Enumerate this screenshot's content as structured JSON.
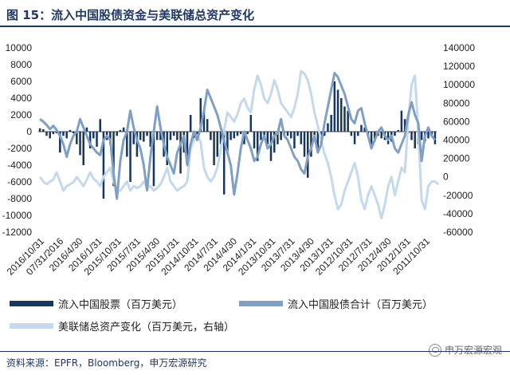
{
  "figure": {
    "title": "图 15：流入中国股债资金与美联储总资产变化",
    "source": "资料来源：EPFR，Bloomberg，申万宏源研究",
    "watermark": "申万宏源宏观"
  },
  "legend": {
    "equity": "流入中国股票（百万美元）",
    "bond": "流入中国股债合计（百万美元）",
    "fed": "美联储总资产变化（百万美元，右轴）"
  },
  "colors": {
    "equity": "#17375e",
    "bond": "#7f9fc4",
    "fed": "#c5d9ec",
    "title": "#1f3864"
  },
  "chart_data": {
    "type": "bar",
    "x_ticks": [
      "2016/10/31",
      "07/31/2016",
      "2016/4/30",
      "2016/1/31",
      "2015/10/31",
      "2015/7/31",
      "2015/4/30",
      "2015/1/31",
      "2014/10/31",
      "2014/7/31",
      "2014/4/30",
      "2014/1/31",
      "2013/10/31",
      "2013/7/31",
      "2013/4/30",
      "2013/1/31",
      "2012/10/31",
      "2012/7/31",
      "2012/4/30",
      "2012/1/31",
      "2011/10/31"
    ],
    "left_axis": {
      "ylim": [
        -12000,
        10000
      ],
      "ticks": [
        10000,
        8000,
        6000,
        4000,
        2000,
        0,
        -2000,
        -4000,
        -6000,
        -8000,
        -10000,
        -12000
      ]
    },
    "right_axis": {
      "ylim": [
        -60000,
        140000
      ],
      "ticks": [
        140000,
        120000,
        100000,
        80000,
        60000,
        40000,
        20000,
        0,
        -20000,
        -40000,
        -60000
      ]
    },
    "legend_position": "bottom",
    "series": [
      {
        "name": "流入中国股票（百万美元）",
        "type": "bar",
        "axis": "left",
        "values": [
          400,
          300,
          -500,
          -800,
          -300,
          -200,
          -2500,
          -500,
          -800,
          200,
          -200,
          -1500,
          -2800,
          -4000,
          500,
          -2000,
          -800,
          -1800,
          1500,
          -8000,
          -1000,
          -1500,
          -6500,
          -500,
          200,
          500,
          -3000,
          -6000,
          -1500,
          -3000,
          -1000,
          -1200,
          -500,
          -1800,
          -6500,
          -1000,
          -1000,
          -3000,
          -4000,
          -1000,
          -500,
          -1000,
          -5000,
          -2500,
          -3000,
          2000,
          -1000,
          -500,
          4000,
          2500,
          1500,
          -1000,
          -4000,
          -3000,
          -1500,
          -7500,
          -2500,
          -1000,
          -800,
          -500,
          -300,
          -1500,
          -300,
          2000,
          -2000,
          -3500,
          -1000,
          -500,
          -1500,
          -3500,
          -2500,
          -1500,
          -1000,
          -300,
          -500,
          -800,
          -2000,
          -500,
          -1500,
          -3000,
          -5500,
          -3000,
          -500,
          -2500,
          -1500,
          -500,
          1000,
          2000,
          6000,
          5000,
          4000,
          3000,
          2500,
          -500,
          -1500,
          -500,
          800,
          500,
          -500,
          -1500,
          -1200,
          -500,
          -800,
          -1000,
          -1500,
          -1200,
          -500,
          200,
          2500,
          1500,
          -200,
          -1000,
          -2000,
          -1500,
          -1000,
          -1200,
          -800,
          -500,
          -1500
        ]
      },
      {
        "name": "流入中国股债合计（百万美元）",
        "type": "line",
        "axis": "left",
        "values": [
          1500,
          1200,
          800,
          300,
          700,
          200,
          -500,
          -1500,
          -3000,
          -1500,
          -500,
          0,
          1500,
          500,
          -500,
          -1500,
          -2000,
          -2500,
          -2800,
          -1000,
          -500,
          -1000,
          -5000,
          -8000,
          -3500,
          -1000,
          0,
          2500,
          500,
          -1000,
          -2000,
          -4000,
          -7000,
          -3000,
          0,
          3000,
          500,
          -1500,
          -3000,
          -4000,
          -5000,
          -2500,
          -1500,
          -500,
          -4000,
          -1500,
          0,
          -1000,
          500,
          2500,
          5000,
          4000,
          3000,
          2000,
          500,
          -1000,
          -2500,
          -4000,
          -7500,
          -5000,
          -2000,
          0,
          -1000,
          -2000,
          -3500,
          -3000,
          -1500,
          -500,
          -2000,
          -1500,
          -500,
          -200,
          1500,
          -500,
          -1000,
          -2000,
          -3000,
          -3500,
          -4500,
          -5000,
          -3000,
          -2000,
          -500,
          -2500,
          -1500,
          1000,
          3000,
          5000,
          7000,
          6500,
          5500,
          4500,
          3000,
          1500,
          1000,
          2500,
          2800,
          1000,
          -500,
          -2000,
          -1000,
          0,
          500,
          -500,
          -1000,
          -500,
          -2000,
          -2500,
          -1500,
          -500,
          2000,
          3500,
          2000,
          1000,
          -3500,
          -500,
          500,
          -500,
          -1000
        ]
      },
      {
        "name": "美联储总资产变化（百万美元，右轴）",
        "type": "line",
        "axis": "right",
        "values": [
          0,
          -5000,
          -8000,
          -5000,
          -3000,
          5000,
          -5000,
          -15000,
          -10000,
          -8000,
          -6000,
          0,
          -5000,
          -10000,
          -3000,
          5000,
          -2000,
          -5000,
          -10000,
          0,
          5000,
          10000,
          -5000,
          -15000,
          -15000,
          -10000,
          -5000,
          -15000,
          -10000,
          -12000,
          -10000,
          -5000,
          -12000,
          -10000,
          -15000,
          -12000,
          -8000,
          0,
          10000,
          -5000,
          -10000,
          -15000,
          -12000,
          -10000,
          -5000,
          30000,
          40000,
          45000,
          38000,
          10000,
          0,
          -5000,
          0,
          10000,
          30000,
          50000,
          70000,
          65000,
          60000,
          68000,
          80000,
          85000,
          75000,
          70000,
          95000,
          110000,
          100000,
          85000,
          80000,
          90000,
          105000,
          95000,
          80000,
          75000,
          70000,
          65000,
          75000,
          90000,
          115000,
          112000,
          105000,
          90000,
          70000,
          55000,
          40000,
          25000,
          15000,
          0,
          -20000,
          -35000,
          -30000,
          -15000,
          -5000,
          5000,
          15000,
          0,
          -25000,
          -35000,
          -20000,
          -10000,
          -20000,
          -30000,
          -45000,
          -30000,
          -10000,
          0,
          -20000,
          -5000,
          10000,
          5000,
          60000,
          100000,
          110000,
          50000,
          -25000,
          -35000,
          -10000,
          -5000,
          -5000,
          -8000
        ]
      }
    ]
  }
}
